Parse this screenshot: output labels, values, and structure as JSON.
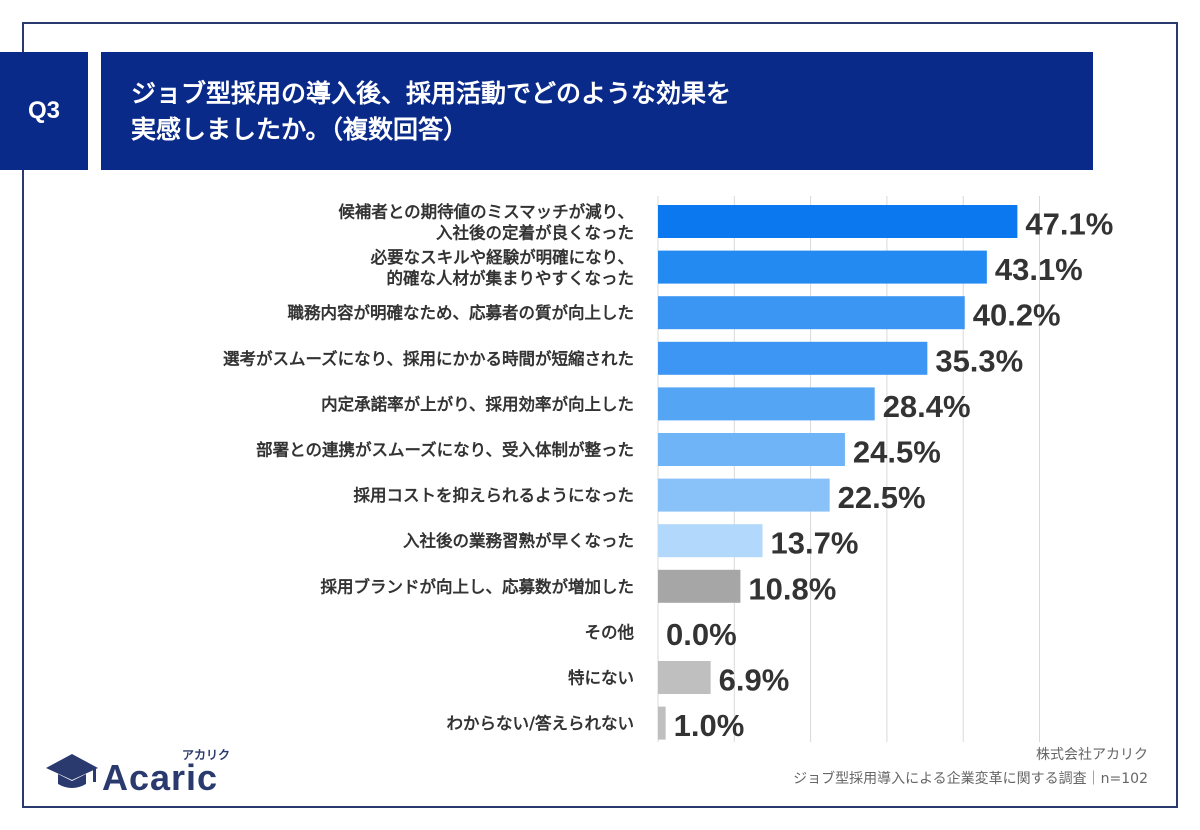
{
  "header": {
    "q_label": "Q3",
    "title_line1": "ジョブ型採用の導入後、採用活動でどのような効果を",
    "title_line2": "実感しましたか。（複数回答）"
  },
  "chart_data": {
    "type": "bar",
    "orientation": "horizontal",
    "categories": [
      [
        "候補者との期待値のミスマッチが減り、",
        "入社後の定着が良くなった"
      ],
      [
        "必要なスキルや経験が明確になり、",
        "的確な人材が集まりやすくなった"
      ],
      [
        "職務内容が明確なため、応募者の質が向上した"
      ],
      [
        "選考がスムーズになり、採用にかかる時間が短縮された"
      ],
      [
        "内定承諾率が上がり、採用効率が向上した"
      ],
      [
        "部署との連携がスムーズになり、受入体制が整った"
      ],
      [
        "採用コストを抑えられるようになった"
      ],
      [
        "入社後の業務習熟が早くなった"
      ],
      [
        "採用ブランドが向上し、応募数が増加した"
      ],
      [
        "その他"
      ],
      [
        "特にない"
      ],
      [
        "わからない/答えられない"
      ]
    ],
    "values": [
      47.1,
      43.1,
      40.2,
      35.3,
      28.4,
      24.5,
      22.5,
      13.7,
      10.8,
      0.0,
      6.9,
      1.0
    ],
    "value_labels": [
      "47.1%",
      "43.1%",
      "40.2%",
      "35.3%",
      "28.4%",
      "24.5%",
      "22.5%",
      "13.7%",
      "10.8%",
      "0.0%",
      "6.9%",
      "1.0%"
    ],
    "bar_colors": [
      "#0b78f0",
      "#238af2",
      "#3a95f3",
      "#3d96f3",
      "#55a5f5",
      "#6fb4f7",
      "#88c2f8",
      "#b2d8fb",
      "#a6a6a6",
      "#a6a6a6",
      "#bfbfbf",
      "#bfbfbf"
    ],
    "xlim": [
      0,
      50
    ],
    "grid": true
  },
  "footer": {
    "company": "株式会社アカリク",
    "survey": "ジョブ型採用導入による企業変革に関する調査｜n=102"
  },
  "logo": {
    "text": "Acaric",
    "kana": "アカリク",
    "icon": "graduation-cap-icon",
    "color": "#2a3a6e"
  }
}
